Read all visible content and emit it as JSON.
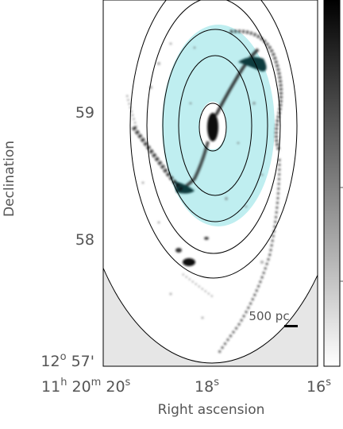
{
  "chart_data": {
    "type": "image",
    "xlabel": "Right ascension",
    "ylabel": "Declination",
    "x_ticks": [
      {
        "prefix": "11",
        "h": "h",
        "mid": " 20",
        "m": "m",
        "val": " 20",
        "s": "s"
      },
      {
        "val": "18",
        "s": "s"
      },
      {
        "val": "16",
        "s": "s"
      }
    ],
    "y_ticks": [
      {
        "label": "59"
      },
      {
        "label": "58"
      },
      {
        "prefix": "12",
        "deg": "o",
        "val": " 57'"
      }
    ],
    "scale_bar_label": "500 pc",
    "ellipse_levels": 5,
    "shaded_annulus_color": "#bfeef0",
    "masked_region_color": "#e6e6e6",
    "colorbar": {
      "from": "#ffffff",
      "to": "#000000"
    }
  }
}
